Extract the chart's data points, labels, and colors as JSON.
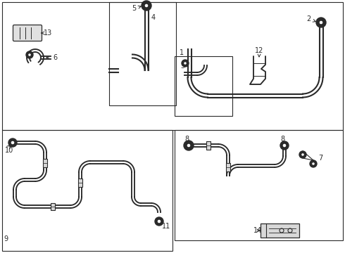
{
  "bg_color": "#ffffff",
  "line_color": "#2a2a2a",
  "fig_width": 4.9,
  "fig_height": 3.6,
  "dpi": 100,
  "lw_tube": 1.5,
  "lw_border": 0.8
}
